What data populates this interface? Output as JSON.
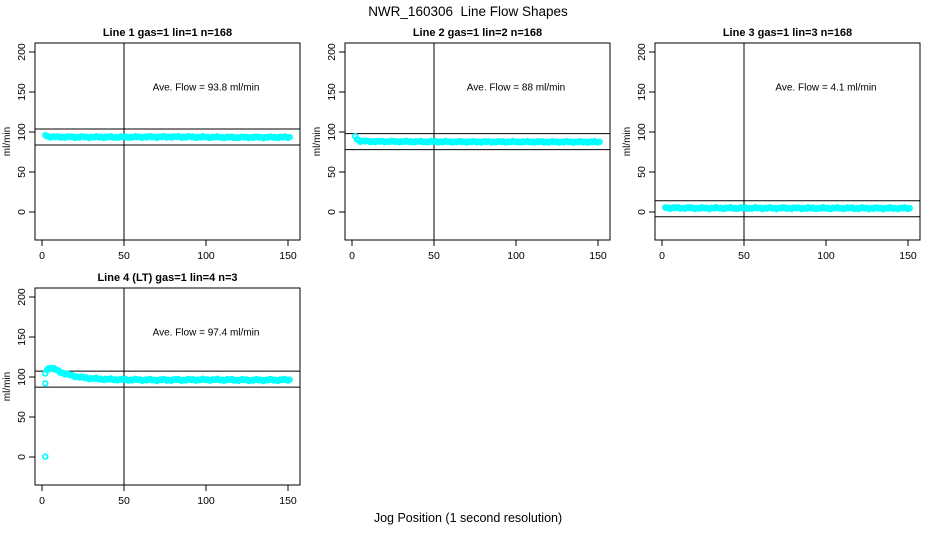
{
  "page": {
    "title": "NWR_160306  Line Flow Shapes",
    "xlabel": "Jog Position (1 second resolution)"
  },
  "colors": {
    "points": "#00ffff",
    "axis": "#000000",
    "background": "#ffffff"
  },
  "chart_data": [
    {
      "type": "scatter",
      "title": "Line 1 gas=1 lin=1 n=168",
      "n": 168,
      "ave_flow": 93.8,
      "ave_label": "Ave. Flow =  93.8  ml/min",
      "ylabel": "ml/min",
      "x_ticks": [
        0,
        50,
        100,
        150
      ],
      "y_ticks": [
        0,
        50,
        100,
        150,
        200
      ],
      "xlim": [
        -4,
        157
      ],
      "ylim": [
        -35,
        211
      ],
      "vline_x": 50,
      "hlines": [
        103.8,
        83.8
      ],
      "x_step": 1,
      "jitter": 1.1,
      "series_anchors": [
        [
          2,
          96.5
        ],
        [
          3,
          94.8
        ],
        [
          6,
          93.8
        ],
        [
          40,
          93.6
        ],
        [
          80,
          93.9
        ],
        [
          120,
          93.3
        ],
        [
          151,
          93.5
        ]
      ],
      "extra_points": []
    },
    {
      "type": "scatter",
      "title": "Line 2 gas=1 lin=2 n=168",
      "n": 168,
      "ave_flow": 88,
      "ave_label": "Ave. Flow =  88  ml/min",
      "ylabel": "ml/min",
      "x_ticks": [
        0,
        50,
        100,
        150
      ],
      "y_ticks": [
        0,
        50,
        100,
        150,
        200
      ],
      "xlim": [
        -4,
        157
      ],
      "ylim": [
        -35,
        211
      ],
      "vline_x": 50,
      "hlines": [
        98,
        78
      ],
      "x_step": 1,
      "jitter": 1.0,
      "series_anchors": [
        [
          2,
          95
        ],
        [
          3,
          91
        ],
        [
          5,
          88.8
        ],
        [
          10,
          88.2
        ],
        [
          60,
          87.8
        ],
        [
          151,
          87.6
        ]
      ],
      "extra_points": []
    },
    {
      "type": "scatter",
      "title": "Line 3 gas=1 lin=3 n=168",
      "n": 168,
      "ave_flow": 4.1,
      "ave_label": "Ave. Flow =  4.1  ml/min",
      "ylabel": "ml/min",
      "x_ticks": [
        0,
        50,
        100,
        150
      ],
      "y_ticks": [
        0,
        50,
        100,
        150,
        200
      ],
      "xlim": [
        -4,
        157
      ],
      "ylim": [
        -35,
        211
      ],
      "vline_x": 50,
      "hlines": [
        14.1,
        -5.9
      ],
      "x_step": 1,
      "jitter": 1.2,
      "series_anchors": [
        [
          2,
          6
        ],
        [
          4,
          5.2
        ],
        [
          20,
          4.9
        ],
        [
          151,
          4.7
        ]
      ],
      "extra_points": []
    },
    {
      "type": "scatter",
      "title": "Line 4 (LT) gas=1 lin=4 n=3",
      "n": 3,
      "ave_flow": 97.4,
      "ave_label": "Ave. Flow =  97.4  ml/min",
      "ylabel": "ml/min",
      "x_ticks": [
        0,
        50,
        100,
        150
      ],
      "y_ticks": [
        0,
        50,
        100,
        150,
        200
      ],
      "xlim": [
        -4,
        157
      ],
      "ylim": [
        -35,
        211
      ],
      "vline_x": 50,
      "hlines": [
        107.4,
        87.4
      ],
      "x_step": 1,
      "jitter": 1.3,
      "series_anchors": [
        [
          3,
          109
        ],
        [
          4,
          111
        ],
        [
          6,
          111.5
        ],
        [
          8,
          109.5
        ],
        [
          11,
          106.5
        ],
        [
          15,
          103.5
        ],
        [
          19,
          101.5
        ],
        [
          24,
          99.5
        ],
        [
          30,
          98.2
        ],
        [
          38,
          97.2
        ],
        [
          50,
          96.6
        ],
        [
          70,
          96.3
        ],
        [
          100,
          96.6
        ],
        [
          130,
          96.2
        ],
        [
          151,
          96.5
        ]
      ],
      "extra_points": [
        [
          2,
          104.5
        ],
        [
          2,
          92
        ],
        [
          2,
          0.5
        ]
      ]
    }
  ]
}
